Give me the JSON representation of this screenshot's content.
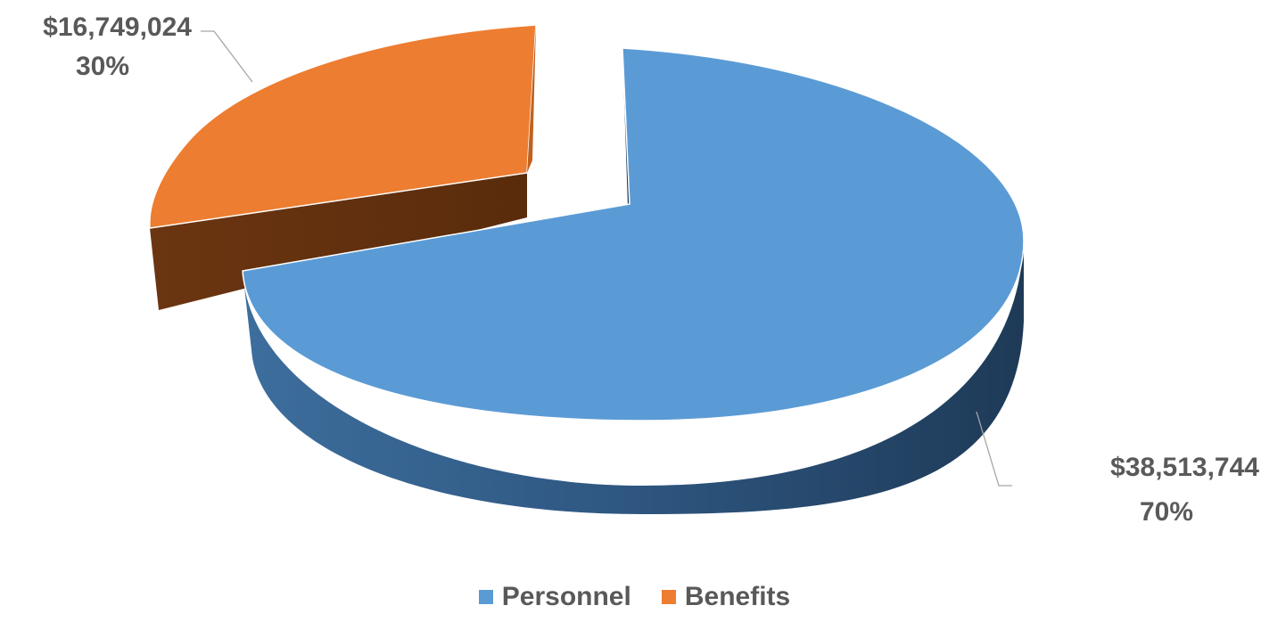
{
  "chart_data": {
    "type": "pie",
    "title": "",
    "style": "3d-exploded",
    "slices": [
      {
        "name": "Personnel",
        "value": 38513744,
        "value_label": "$38,513,744",
        "percent_label": "70%",
        "color": "#5b9bd5",
        "side_color": "#2f5a86",
        "exploded": false
      },
      {
        "name": "Benefits",
        "value": 16749024,
        "value_label": "$16,749,024",
        "percent_label": "30%",
        "color": "#ed7d31",
        "side_color": "#6a3410",
        "exploded": true
      }
    ],
    "legend": {
      "position": "bottom"
    }
  }
}
